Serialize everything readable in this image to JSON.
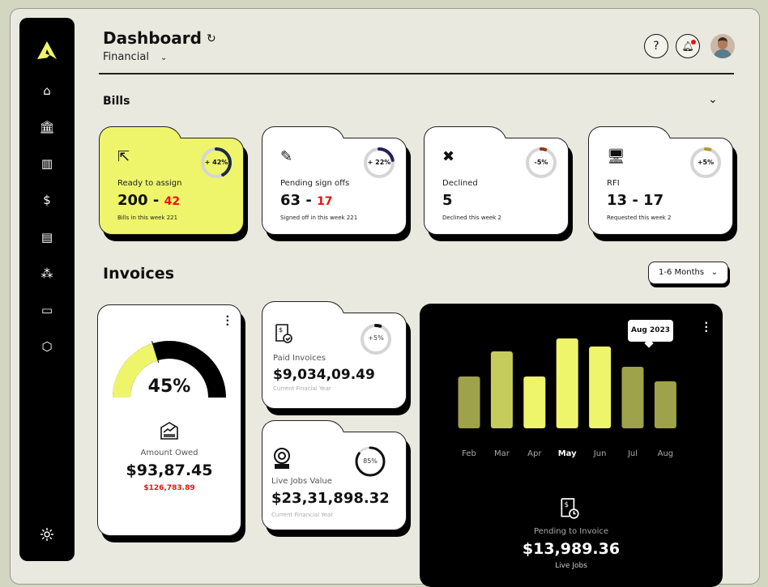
{
  "header": {
    "title": "Dashboard",
    "subtitle": "Financial",
    "avatar": "user-avatar"
  },
  "sidebar": {
    "icons": [
      "home-icon",
      "bank-icon",
      "report-icon",
      "dollar-exchange-icon",
      "document-icon",
      "team-icon",
      "analytics-icon",
      "play-icon"
    ],
    "settings": "gear-icon"
  },
  "bills": {
    "title": "Bills",
    "cards": [
      {
        "label": "Ready to assign",
        "main": "200 - ",
        "accent": "42",
        "note": "Bills in this week 221",
        "badge": "+ 42%",
        "percent": 42,
        "ring_color": "#1d2a44",
        "icon": "assign-icon"
      },
      {
        "label": "Pending sign offs",
        "main": "63 - ",
        "accent": "17",
        "note": "Signed off in this week 221",
        "badge": "+ 22%",
        "percent": 22,
        "ring_color": "#24205e",
        "icon": "sign-document-icon"
      },
      {
        "label": "Declined",
        "main": "5",
        "accent": "",
        "note": "Declined this week 2",
        "badge": "-5%",
        "percent": 5,
        "ring_color": "#8a3a1a",
        "icon": "declined-file-icon"
      },
      {
        "label": "RFI",
        "main": "13 - 17",
        "accent": "",
        "note": "Requested this week 2",
        "badge": "+5%",
        "percent": 5,
        "ring_color": "#a89a30",
        "icon": "rfi-monitor-icon"
      }
    ]
  },
  "invoices": {
    "title": "Invoices",
    "range": "1-6 Months",
    "owed": {
      "percent_label": "45%",
      "percent": 45,
      "label": "Amount Owed",
      "value": "$93,87.45",
      "secondary": "$126,783.89"
    },
    "paid": {
      "label": "Paid Invoices",
      "value": "$9,034,09.49",
      "note": "Current Finacial Year",
      "badge": "+5%",
      "percent": 5
    },
    "live": {
      "label": "Live Jobs Value",
      "value": "$23,31,898.32",
      "note": "Current Financial Year",
      "badge": "85%",
      "percent": 85
    },
    "pending": {
      "label": "Pending to Invoice",
      "value": "$13,989.36",
      "note": "Live Jobs"
    }
  },
  "chart_data": {
    "type": "bar",
    "categories": [
      "Feb",
      "Mar",
      "Apr",
      "May",
      "Jun",
      "Jul",
      "Aug"
    ],
    "values": [
      64,
      95,
      64,
      111,
      101,
      76,
      58
    ],
    "colors": [
      "#9ea24a",
      "#c6cc5c",
      "#eef56a",
      "#eef56a",
      "#eef56a",
      "#9ea24a",
      "#9ea24a"
    ],
    "highlight": "May",
    "tooltip": "Aug 2023",
    "title": "",
    "xlabel": "",
    "ylabel": ""
  }
}
